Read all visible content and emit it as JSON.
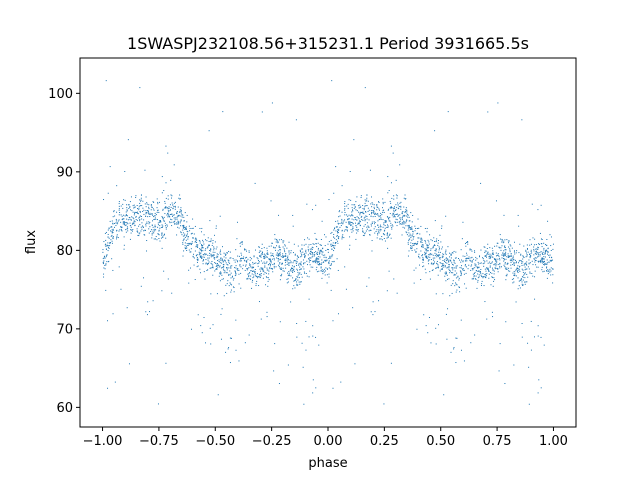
{
  "chart_data": {
    "type": "scatter",
    "title": "1SWASPJ232108.56+315231.1 Period 3931665.5s",
    "xlabel": "phase",
    "ylabel": "flux",
    "xlim": [
      -1.1,
      1.1
    ],
    "ylim": [
      57.5,
      104.5
    ],
    "xticks": [
      -1.0,
      -0.75,
      -0.5,
      -0.25,
      0.0,
      0.25,
      0.5,
      0.75,
      1.0
    ],
    "xtick_labels": [
      "−1.00",
      "−0.75",
      "−0.50",
      "−0.25",
      "0.00",
      "0.25",
      "0.50",
      "0.75",
      "1.00"
    ],
    "yticks": [
      60,
      70,
      80,
      90,
      100
    ],
    "ytick_labels": [
      "60",
      "70",
      "80",
      "90",
      "100"
    ],
    "grid": false,
    "marker_color": "#1f77b4",
    "series": [
      {
        "folded_period": true,
        "profile": [
          [
            0.0,
            79.0
          ],
          [
            0.02,
            80.5
          ],
          [
            0.05,
            83.0
          ],
          [
            0.08,
            84.5
          ],
          [
            0.12,
            84.0
          ],
          [
            0.17,
            84.5
          ],
          [
            0.22,
            84.0
          ],
          [
            0.26,
            83.5
          ],
          [
            0.3,
            85.0
          ],
          [
            0.34,
            84.0
          ],
          [
            0.38,
            81.5
          ],
          [
            0.42,
            80.0
          ],
          [
            0.46,
            79.5
          ],
          [
            0.5,
            79.0
          ],
          [
            0.54,
            78.0
          ],
          [
            0.58,
            77.0
          ],
          [
            0.62,
            79.5
          ],
          [
            0.66,
            77.5
          ],
          [
            0.7,
            78.0
          ],
          [
            0.74,
            78.5
          ],
          [
            0.78,
            80.0
          ],
          [
            0.82,
            78.0
          ],
          [
            0.86,
            77.5
          ],
          [
            0.9,
            79.0
          ],
          [
            0.94,
            79.5
          ],
          [
            0.98,
            78.5
          ],
          [
            1.0,
            79.0
          ]
        ]
      }
    ]
  }
}
